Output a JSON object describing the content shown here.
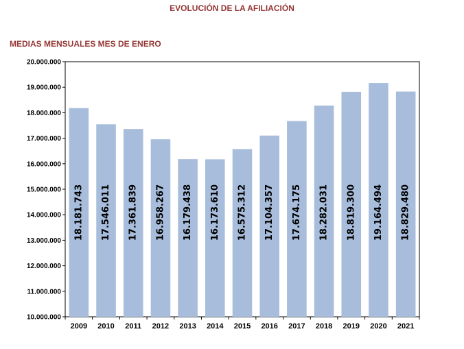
{
  "title": "EVOLUCIÓN DE LA AFILIACIÓN",
  "subtitle": "MEDIAS MENSUALES MES DE ENERO",
  "colors": {
    "bar": "#a8bddb",
    "title": "#943634",
    "axis": "#000000",
    "frame": "#000000"
  },
  "chart_data": {
    "type": "bar",
    "title": "EVOLUCIÓN DE LA AFILIACIÓN",
    "subtitle": "MEDIAS MENSUALES MES DE ENERO",
    "xlabel": "",
    "ylabel": "",
    "categories": [
      "2009",
      "2010",
      "2011",
      "2012",
      "2013",
      "2014",
      "2015",
      "2016",
      "2017",
      "2018",
      "2019",
      "2020",
      "2021"
    ],
    "values": [
      18181743,
      17546011,
      17361839,
      16958267,
      16179438,
      16173610,
      16575312,
      17104357,
      17674175,
      18282031,
      18819300,
      19164494,
      18829480
    ],
    "data_labels": [
      "18.181.743",
      "17.546.011",
      "17.361.839",
      "16.958.267",
      "16.179.438",
      "16.173.610",
      "16.575.312",
      "17.104.357",
      "17.674.175",
      "18.282.031",
      "18.819.300",
      "19.164.494",
      "18.829.480"
    ],
    "ylim": [
      10000000,
      20000000
    ],
    "yticks": [
      10000000,
      11000000,
      12000000,
      13000000,
      14000000,
      15000000,
      16000000,
      17000000,
      18000000,
      19000000,
      20000000
    ],
    "ytick_labels": [
      "10.000.000",
      "11.000.000",
      "12.000.000",
      "13.000.000",
      "14.000.000",
      "15.000.000",
      "16.000.000",
      "17.000.000",
      "18.000.000",
      "19.000.000",
      "20.000.000"
    ],
    "grid": false,
    "legend": "none"
  }
}
